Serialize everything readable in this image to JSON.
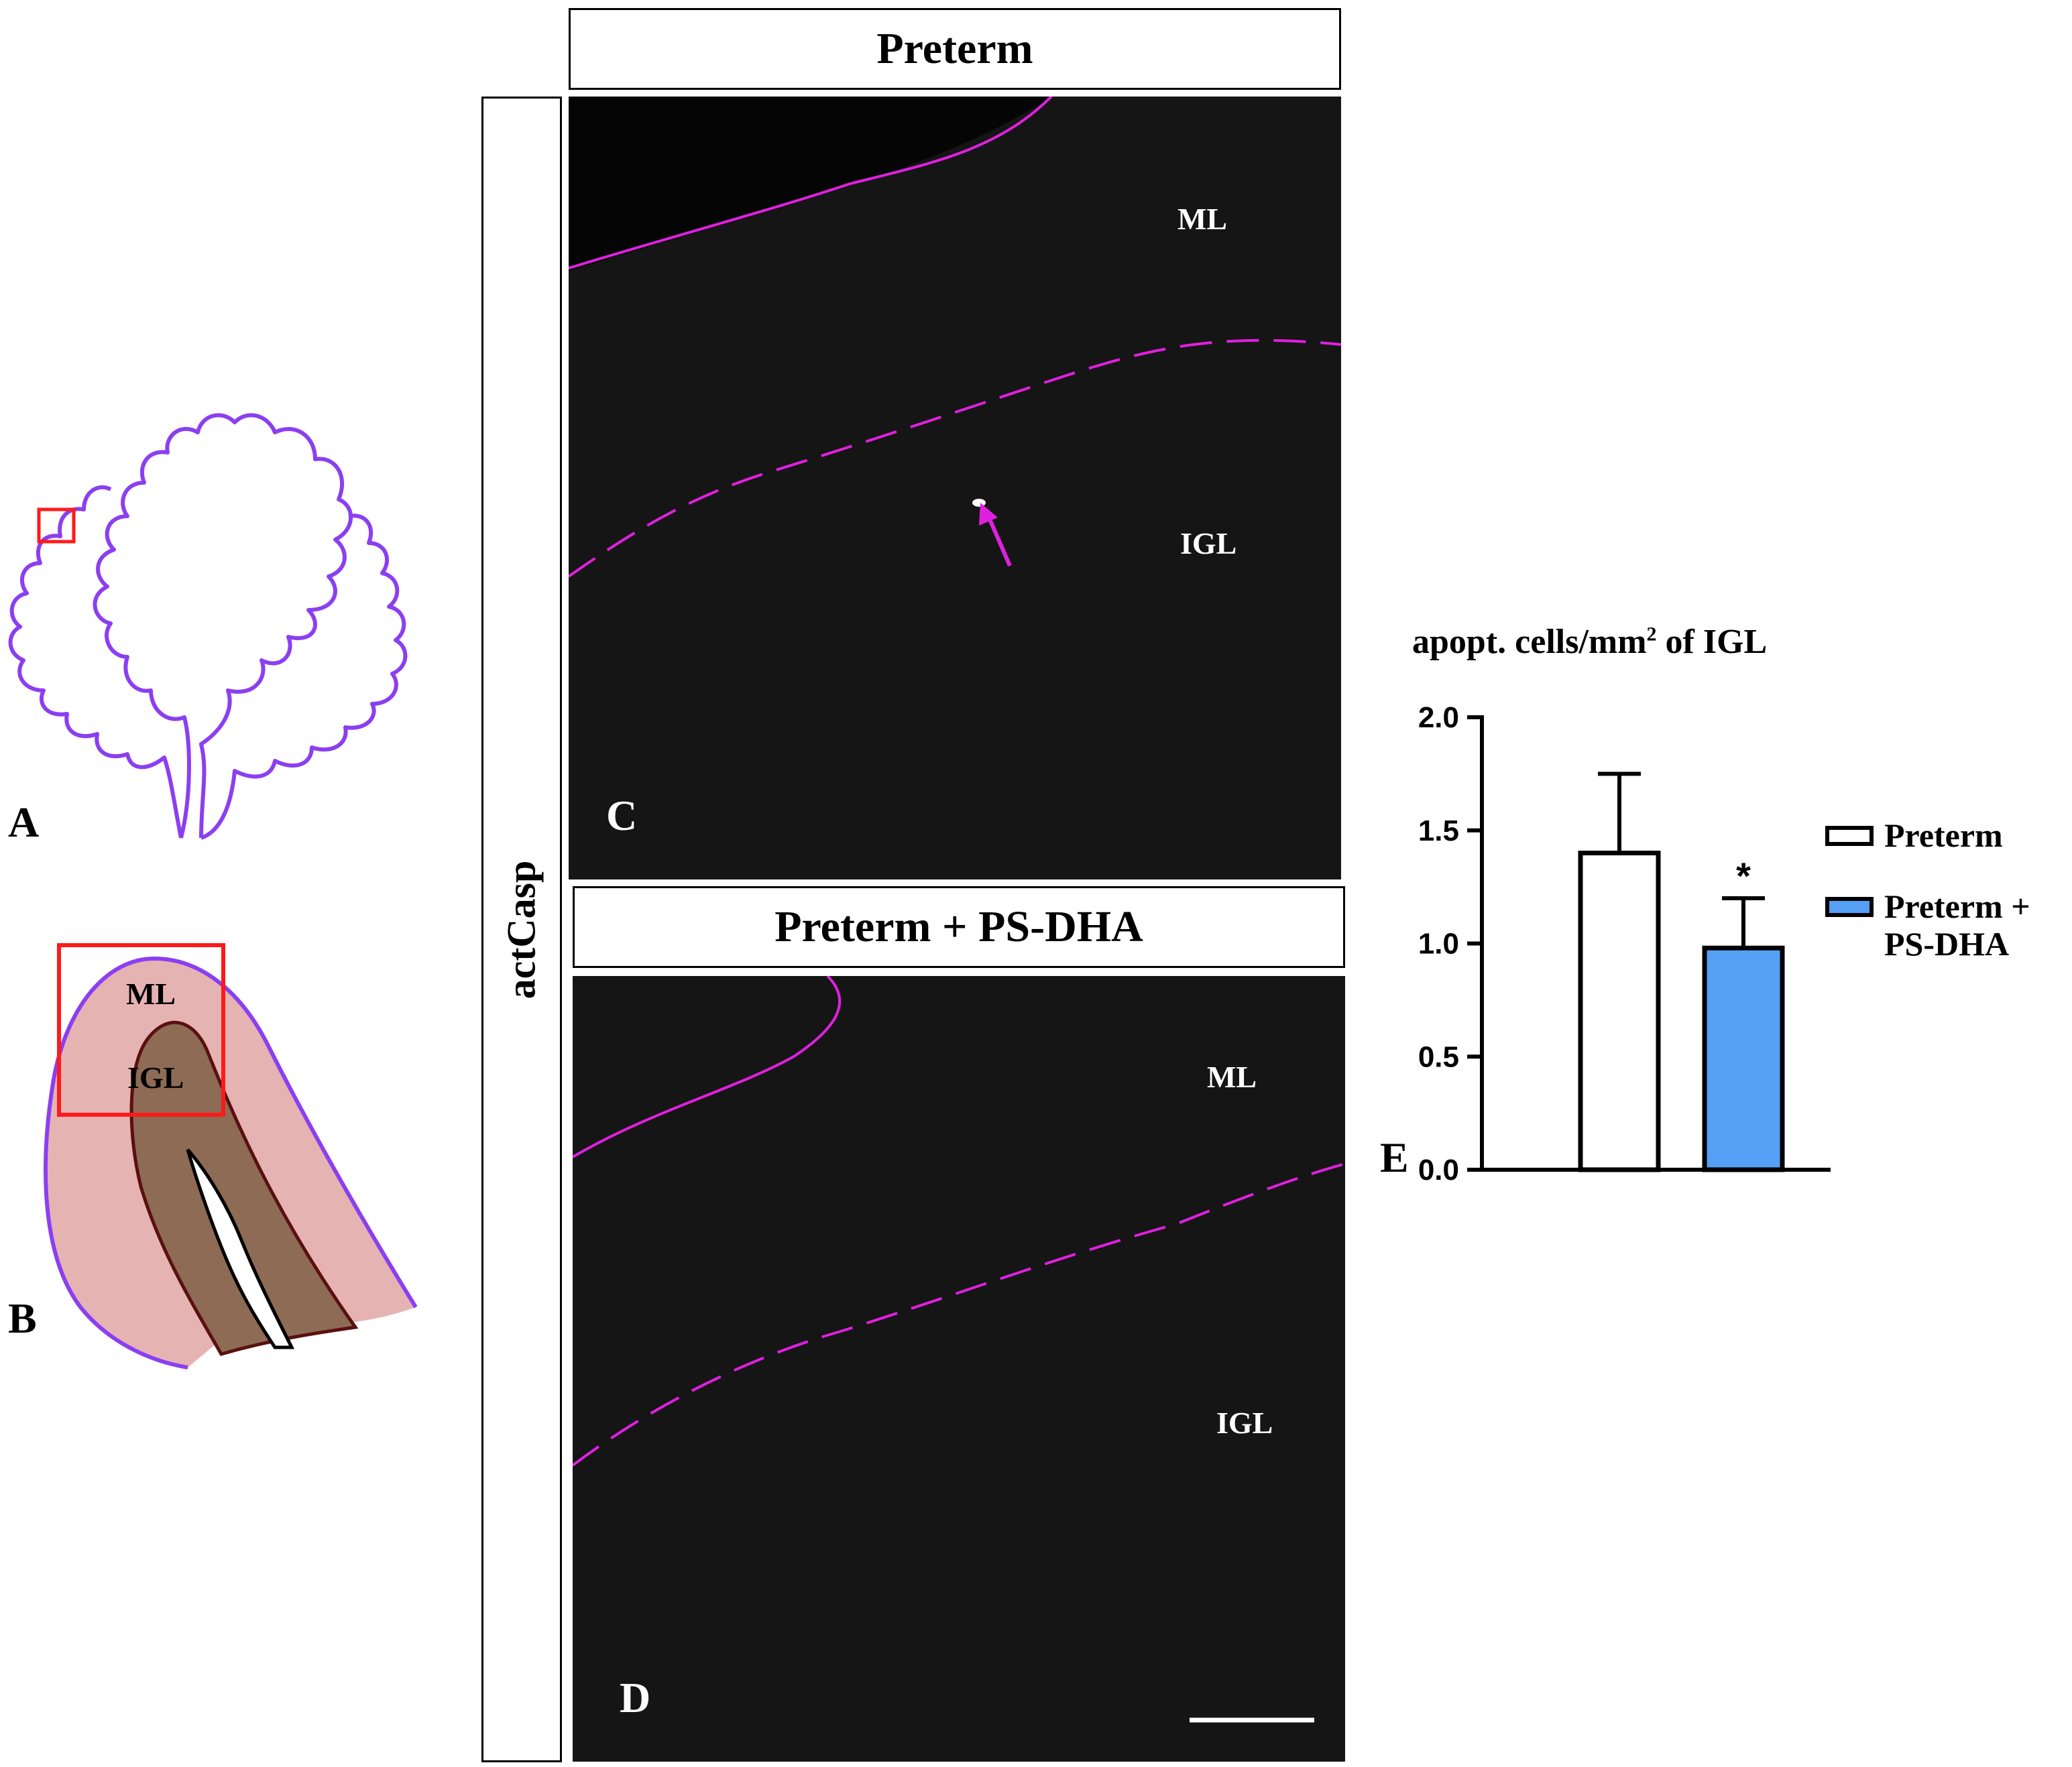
{
  "panels": {
    "A": "A",
    "B": "B",
    "C": "C",
    "D": "D",
    "E": "E"
  },
  "schematic_b": {
    "ml_label": "ML",
    "igl_label": "IGL",
    "colors": {
      "ml": "#e6b3b3",
      "igl": "#8d6b55",
      "outline": "#8b3ff0",
      "box": "#ff1a1a"
    }
  },
  "micrographs": {
    "stain_label": "actCasp",
    "top": {
      "title": "Preterm",
      "ml_label": "ML",
      "igl_label": "IGL"
    },
    "bottom": {
      "title": "Preterm + PS-DHA",
      "ml_label": "ML",
      "igl_label": "IGL"
    },
    "line_color": "#e020e0"
  },
  "chart_data": {
    "type": "bar",
    "title_main": "apopt. cells/mm",
    "title_sup": "2",
    "title_rest": " of IGL",
    "categories": [
      "Preterm",
      "Preterm + PS-DHA"
    ],
    "values": [
      1.4,
      0.98
    ],
    "errors": [
      0.35,
      0.22
    ],
    "colors": [
      "#ffffff",
      "#55a0f5"
    ],
    "significance": [
      "",
      "*"
    ],
    "ylim": [
      0,
      2.0
    ],
    "yticks": [
      "0.0",
      "0.5",
      "1.0",
      "1.5",
      "2.0"
    ],
    "legend": [
      {
        "line1": "Preterm",
        "line2": ""
      },
      {
        "line1": "Preterm +",
        "line2": "PS-DHA"
      }
    ],
    "legend_placement": "right"
  }
}
